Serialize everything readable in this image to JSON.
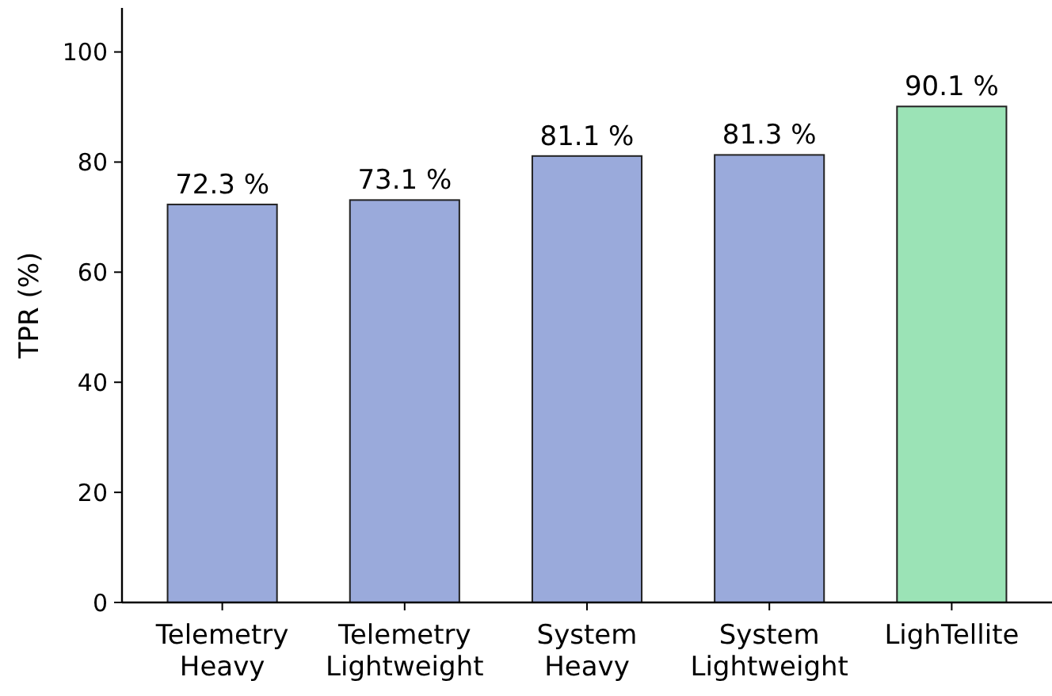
{
  "chart_data": {
    "type": "bar",
    "ylabel": "TPR (%)",
    "categories": [
      "Telemetry\nHeavy",
      "Telemetry\nLightweight",
      "System\nHeavy",
      "System\nLightweight",
      "LighTellite"
    ],
    "values": [
      72.3,
      73.1,
      81.1,
      81.3,
      90.1
    ],
    "colors": [
      "#9aaadb",
      "#9aaadb",
      "#9aaadb",
      "#9aaadb",
      "#9be3b6"
    ],
    "value_labels": [
      "72.3 %",
      "73.1 %",
      "81.1 %",
      "81.3 %",
      "90.1 %"
    ],
    "ylim": [
      0,
      108
    ],
    "yticks": [
      0,
      20,
      40,
      60,
      80,
      100
    ],
    "grid": false
  }
}
